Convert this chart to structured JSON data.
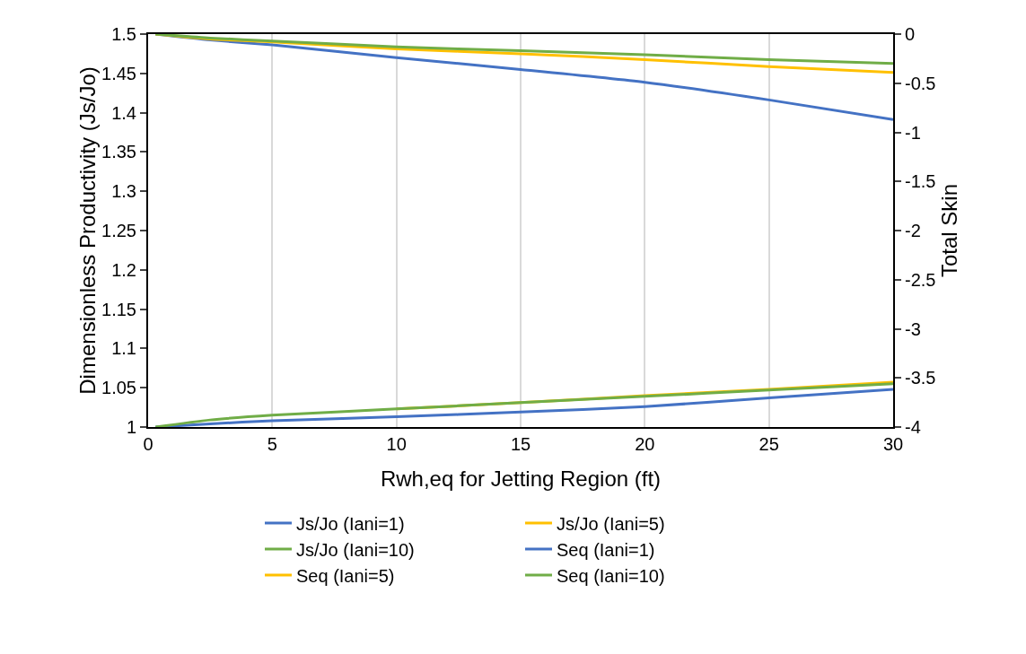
{
  "chart_data": {
    "type": "line",
    "xlabel": "Rwh,eq for Jetting Region (ft)",
    "ylabel": "Dimensionless Productivity (Js/Jo)",
    "y2label": "Total Skin",
    "xlim": [
      0,
      30
    ],
    "xticks": [
      0,
      5,
      10,
      15,
      20,
      25,
      30
    ],
    "ylim": [
      1,
      1.5
    ],
    "yticks": [
      {
        "value": 1,
        "label": "1"
      },
      {
        "value": 1.05,
        "label": "1.05"
      },
      {
        "value": 1.1,
        "label": "1.1"
      },
      {
        "value": 1.15,
        "label": "1.15"
      },
      {
        "value": 1.2,
        "label": "1.2"
      },
      {
        "value": 1.25,
        "label": "1.25"
      },
      {
        "value": 1.3,
        "label": "1.3"
      },
      {
        "value": 1.35,
        "label": "1.35"
      },
      {
        "value": 1.4,
        "label": "1.4"
      },
      {
        "value": 1.45,
        "label": "1.45"
      },
      {
        "value": 1.5,
        "label": "1.5"
      }
    ],
    "y2lim": [
      -4,
      0
    ],
    "y2ticks": [
      -4,
      -3.5,
      -3,
      -2.5,
      -2,
      -1.5,
      -1,
      -0.5,
      0
    ],
    "grid": "x",
    "legend": "bottom",
    "marker": "none",
    "line_style": "solid",
    "x": [
      0.3,
      2.5,
      5,
      10,
      15,
      20,
      25,
      30
    ],
    "series": [
      {
        "name": "Js/Jo (Iani=1)",
        "color": "#4472c4",
        "values": [
          1,
          1.004,
          1.008,
          1.013,
          1.019,
          1.026,
          1.037,
          1.048
        ]
      },
      {
        "name": "Js/Jo (Iani=5)",
        "color": "#ffc000",
        "values": [
          null,
          null,
          null,
          1.023,
          1.031,
          1.04,
          1.048,
          1.057
        ]
      },
      {
        "name": "Js/Jo (Iani=10)",
        "color": "#70ad47",
        "values": [
          1,
          1.009,
          1.015,
          1.023,
          1.031,
          1.039,
          1.047,
          1.055
        ]
      },
      {
        "name": "Seq (Iani=1)",
        "color": "#4472c4",
        "axis": "y2",
        "values": [
          0,
          -0.06,
          -0.11,
          -0.24,
          -0.36,
          -0.49,
          -0.67,
          -0.87
        ]
      },
      {
        "name": "Seq (Iani=5)",
        "color": "#ffc000",
        "axis": "y2",
        "values": [
          0,
          -0.05,
          -0.08,
          -0.15,
          -0.2,
          -0.26,
          -0.33,
          -0.39
        ]
      },
      {
        "name": "Seq (Iani=10)",
        "color": "#70ad47",
        "axis": "y2",
        "values": [
          0,
          -0.04,
          -0.07,
          -0.13,
          -0.17,
          -0.21,
          -0.26,
          -0.3
        ]
      }
    ]
  }
}
